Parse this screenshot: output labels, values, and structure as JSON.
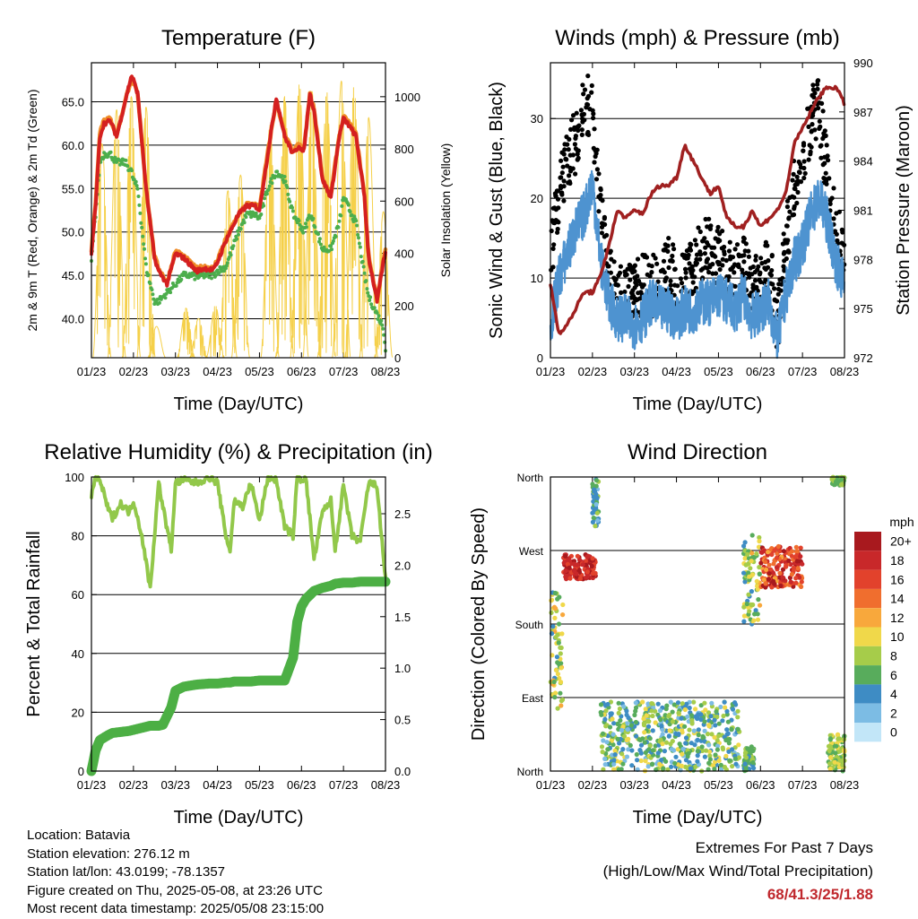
{
  "chart_data": [
    {
      "type": "line",
      "title": "Temperature (F)",
      "xlabel": "Time (Day/UTC)",
      "ylabel": "2m & 9m T (Red, Orange) & 2m Td (Green)",
      "ylabel_right": "Solar Insolation (Yellow)",
      "x_ticks": [
        "01/23",
        "02/23",
        "03/23",
        "04/23",
        "05/23",
        "06/23",
        "07/23",
        "08/23"
      ],
      "y_ticks": [
        "40.0",
        "45.0",
        "50.0",
        "55.0",
        "60.0",
        "65.0"
      ],
      "y_right_ticks": [
        "0",
        "200",
        "400",
        "600",
        "800",
        "1000"
      ],
      "ylim": [
        35.5,
        69.5
      ],
      "ylim_right": [
        0,
        1130
      ],
      "x": [
        0,
        0.1,
        0.2,
        0.3,
        0.45,
        0.6,
        0.8,
        0.95,
        1.0,
        1.1,
        1.3,
        1.5,
        1.6,
        1.8,
        2.0,
        2.2,
        2.4,
        2.5,
        2.7,
        2.9,
        3.0,
        3.2,
        3.5,
        3.7,
        3.9,
        4.0,
        4.2,
        4.4,
        4.6,
        4.8,
        4.95,
        5.05,
        5.2,
        5.3,
        5.5,
        5.7,
        5.9,
        6.0,
        6.1,
        6.3,
        6.5,
        6.6,
        6.8,
        6.95,
        7.0
      ],
      "series": [
        {
          "name": "2m T",
          "color": "#d42020",
          "values": [
            47.5,
            53,
            61,
            62.5,
            62.8,
            61,
            65,
            68,
            67.5,
            66,
            55,
            47,
            45.5,
            44,
            47.5,
            47,
            46,
            45.5,
            45.8,
            45.6,
            46.5,
            49,
            52,
            53,
            53,
            52.5,
            59,
            65.5,
            61,
            59,
            60,
            59,
            66,
            64,
            56,
            54,
            61,
            63,
            62.5,
            61,
            54,
            47,
            42,
            46.5,
            47.5
          ]
        },
        {
          "name": "9m T",
          "color": "#f08c28",
          "values": [
            47.8,
            53.5,
            61.5,
            63,
            63,
            61.2,
            65,
            67.8,
            67.2,
            65.8,
            55.2,
            47.2,
            45.8,
            44.2,
            47.8,
            47.2,
            46.2,
            45.8,
            46,
            45.8,
            46.8,
            49.2,
            52,
            53.2,
            53.2,
            52.8,
            59.2,
            65.2,
            61.2,
            59.2,
            60.2,
            59.2,
            65.8,
            64.2,
            56.2,
            54.2,
            61.2,
            63.2,
            62.8,
            61.2,
            54.2,
            47.2,
            42.2,
            46.8,
            47.8
          ]
        },
        {
          "name": "2m Td",
          "color": "#4cae4c",
          "values": [
            46.5,
            52,
            58,
            59,
            59,
            58,
            58,
            57,
            56,
            55,
            46,
            42,
            42,
            43,
            44,
            45,
            45,
            44.8,
            45,
            45,
            45.5,
            46,
            50,
            52,
            52,
            51.5,
            55,
            57,
            56,
            52,
            51,
            50,
            52,
            51,
            48,
            48,
            51,
            54,
            53,
            51,
            45,
            42.5,
            40.5,
            39,
            36.5
          ]
        }
      ],
      "solar": {
        "name": "Solar Insolation",
        "color": "#f5d04a",
        "peaks": [
          [
            0.25,
            820
          ],
          [
            0.6,
            950
          ],
          [
            0.95,
            1000
          ],
          [
            1.3,
            960
          ],
          [
            1.55,
            120
          ],
          [
            2.25,
            190
          ],
          [
            2.55,
            150
          ],
          [
            2.95,
            200
          ],
          [
            3.25,
            640
          ],
          [
            3.55,
            700
          ],
          [
            4.25,
            890
          ],
          [
            4.6,
            1000
          ],
          [
            4.95,
            1050
          ],
          [
            5.25,
            1020
          ],
          [
            5.6,
            1020
          ],
          [
            5.95,
            1060
          ],
          [
            6.25,
            1040
          ],
          [
            6.6,
            920
          ],
          [
            6.95,
            560
          ]
        ]
      }
    },
    {
      "type": "scatter",
      "title": "Winds (mph) & Pressure (mb)",
      "xlabel": "Time (Day/UTC)",
      "ylabel": "Sonic Wind & Gust (Blue, Black)",
      "ylabel_right": "Station Pressure (Maroon)",
      "x_ticks": [
        "01/23",
        "02/23",
        "03/23",
        "04/23",
        "05/23",
        "06/23",
        "07/23",
        "08/23"
      ],
      "y_ticks": [
        "0",
        "10",
        "20",
        "30"
      ],
      "y_right_ticks": [
        "972",
        "975",
        "978",
        "981",
        "984",
        "987",
        "990"
      ],
      "ylim": [
        0,
        37
      ],
      "ylim_right": [
        972,
        990
      ],
      "x": [
        0,
        0.2,
        0.4,
        0.6,
        0.8,
        1.0,
        1.2,
        1.4,
        1.6,
        1.8,
        2.0,
        2.2,
        2.4,
        2.6,
        2.8,
        3.0,
        3.2,
        3.4,
        3.6,
        3.8,
        4.0,
        4.2,
        4.4,
        4.6,
        4.8,
        5.0,
        5.2,
        5.4,
        5.6,
        5.8,
        6.0,
        6.2,
        6.4,
        6.6,
        6.8,
        7.0
      ],
      "series": [
        {
          "name": "Sonic Wind",
          "color": "#4e93d0",
          "values": [
            4,
            10,
            13,
            16,
            18,
            22,
            12,
            7,
            5,
            5,
            4,
            5,
            7,
            6,
            6,
            5,
            6,
            6,
            7,
            7,
            8,
            7,
            6,
            8,
            5,
            6,
            7,
            2,
            8,
            12,
            14,
            18,
            20,
            17,
            12,
            9
          ]
        },
        {
          "name": "Gust",
          "color": "#000000",
          "values": [
            12,
            21,
            25,
            27,
            33,
            30,
            18,
            10,
            8,
            8,
            8,
            9,
            9,
            9,
            12,
            9,
            9,
            12,
            13,
            14,
            13,
            11,
            10,
            12,
            9,
            10,
            12,
            4,
            14,
            22,
            24,
            30,
            31,
            22,
            16,
            13
          ]
        },
        {
          "name": "Station Pressure",
          "color": "#a02020",
          "values": [
            976.5,
            973.5,
            974,
            975,
            976,
            976,
            977,
            979,
            981,
            980.5,
            981,
            980.8,
            982,
            982.5,
            982.5,
            983,
            985,
            984,
            983,
            982,
            982.5,
            980.5,
            980,
            980,
            981,
            980,
            980.5,
            981,
            982,
            985,
            986,
            987,
            988,
            988.5,
            988.5,
            987.5
          ]
        }
      ]
    },
    {
      "type": "line",
      "title": "Relative Humidity (%) & Precipitation (in)",
      "xlabel": "Time (Day/UTC)",
      "ylabel": "Percent & Total Rainfall",
      "x_ticks": [
        "01/23",
        "02/23",
        "03/23",
        "04/23",
        "05/23",
        "06/23",
        "07/23",
        "08/23"
      ],
      "y_ticks": [
        "0",
        "20",
        "40",
        "60",
        "80",
        "100"
      ],
      "y_right_ticks": [
        "0.0",
        "0.5",
        "1.0",
        "1.5",
        "2.0",
        "2.5"
      ],
      "ylim": [
        0,
        100
      ],
      "ylim_right": [
        0,
        2.857
      ],
      "x": [
        0,
        0.1,
        0.2,
        0.4,
        0.5,
        0.7,
        0.9,
        1.0,
        1.2,
        1.4,
        1.6,
        1.7,
        1.9,
        2.0,
        2.2,
        2.5,
        2.8,
        3.0,
        3.2,
        3.3,
        3.4,
        3.6,
        3.8,
        4.0,
        4.2,
        4.4,
        4.6,
        4.8,
        4.9,
        5.0,
        5.1,
        5.3,
        5.5,
        5.7,
        5.8,
        6.0,
        6.2,
        6.4,
        6.6,
        6.8,
        6.9,
        7.0
      ],
      "series": [
        {
          "name": "Relative Humidity",
          "color": "#92c84a",
          "values": [
            94,
            100,
            99,
            89,
            86,
            91,
            88,
            92,
            80,
            62,
            98,
            90,
            75,
            98,
            99,
            98,
            100,
            98,
            80,
            75,
            92,
            90,
            98,
            85,
            100,
            99,
            83,
            80,
            100,
            99,
            100,
            72,
            88,
            92,
            75,
            97,
            80,
            78,
            98,
            97,
            80,
            66
          ]
        },
        {
          "name": "Total Rainfall",
          "color": "#4caf44",
          "values": [
            0,
            0.2,
            0.3,
            0.35,
            0.37,
            0.38,
            0.39,
            0.4,
            0.42,
            0.44,
            0.44,
            0.45,
            0.62,
            0.78,
            0.82,
            0.84,
            0.85,
            0.85,
            0.86,
            0.86,
            0.87,
            0.87,
            0.87,
            0.88,
            0.88,
            0.88,
            0.88,
            1.1,
            1.45,
            1.6,
            1.67,
            1.75,
            1.78,
            1.8,
            1.82,
            1.83,
            1.83,
            1.84,
            1.84,
            1.84,
            1.84,
            1.84
          ]
        }
      ]
    },
    {
      "type": "scatter",
      "title": "Wind Direction",
      "xlabel": "Time (Day/UTC)",
      "ylabel": "Direction (Colored By Speed)",
      "x_ticks": [
        "01/23",
        "02/23",
        "03/23",
        "04/23",
        "05/23",
        "06/23",
        "07/23",
        "08/23"
      ],
      "y_ticks": [
        "North",
        "East",
        "South",
        "West",
        "North"
      ],
      "ylim": [
        0,
        360
      ],
      "legend": {
        "title": "mph",
        "labels": [
          "20+",
          "18",
          "16",
          "14",
          "12",
          "10",
          "8",
          "6",
          "4",
          "2",
          "0"
        ],
        "colors": [
          "#a8191e",
          "#c8282a",
          "#e2422c",
          "#f06e2e",
          "#f8a83c",
          "#f0d84a",
          "#a6cc4a",
          "#58ac5c",
          "#3e8cc4",
          "#7cbce4",
          "#c2e6f8"
        ]
      },
      "clusters": [
        {
          "x": [
            0,
            0.3
          ],
          "dir": [
            70,
            220
          ],
          "speed": [
            4,
            12
          ]
        },
        {
          "x": [
            0.3,
            1.1
          ],
          "dir": [
            235,
            265
          ],
          "speed": [
            16,
            20
          ]
        },
        {
          "x": [
            1.0,
            1.15
          ],
          "dir": [
            300,
            360
          ],
          "speed": [
            2,
            8
          ]
        },
        {
          "x": [
            1.2,
            4.5
          ],
          "dir": [
            0,
            85
          ],
          "speed": [
            2,
            10
          ]
        },
        {
          "x": [
            4.6,
            4.85
          ],
          "dir": [
            0,
            30
          ],
          "speed": [
            4,
            8
          ]
        },
        {
          "x": [
            4.6,
            5.0
          ],
          "dir": [
            180,
            290
          ],
          "speed": [
            4,
            12
          ]
        },
        {
          "x": [
            5.0,
            6.0
          ],
          "dir": [
            225,
            275
          ],
          "speed": [
            12,
            20
          ]
        },
        {
          "x": [
            6.6,
            7.0
          ],
          "dir": [
            0,
            45
          ],
          "speed": [
            6,
            10
          ]
        },
        {
          "x": [
            6.7,
            7.0
          ],
          "dir": [
            350,
            360
          ],
          "speed": [
            6,
            8
          ]
        }
      ]
    }
  ],
  "info": {
    "location": "Location: Batavia",
    "elevation": "Station elevation: 276.12 m",
    "latlon": "Station lat/lon: 43.0199; -78.1357",
    "created": "Figure created on Thu, 2025-05-08, at 23:26 UTC",
    "timestamp": "Most recent data timestamp: 2025/05/08 23:15:00"
  },
  "extremes": {
    "title": "Extremes For Past 7 Days",
    "subtitle": "(High/Low/Max Wind/Total Precipitation)",
    "values": "68/41.3/25/1.88"
  }
}
